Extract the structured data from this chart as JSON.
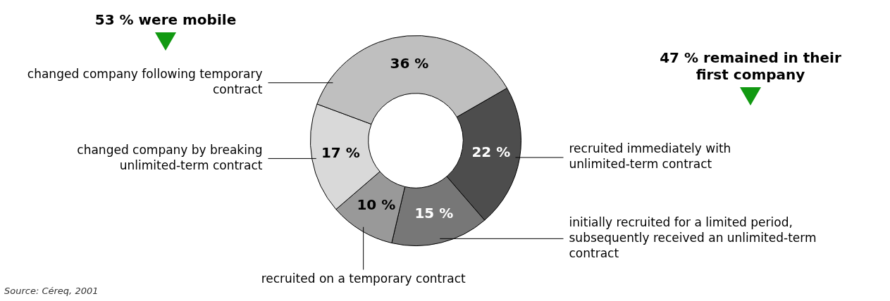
{
  "chart_data": {
    "type": "donut",
    "categories": [
      "recruited immediately with unlimited-term contract",
      "initially recruited for a limited period, subsequently received an unlimited-term contract",
      "recruited on a temporary contract",
      "changed company by breaking unlimited-term contract",
      "changed company following temporary contract"
    ],
    "values": [
      22,
      15,
      10,
      17,
      36
    ],
    "colors": [
      "#4d4d4d",
      "#777777",
      "#999999",
      "#d9d9d9",
      "#bfbfbf"
    ],
    "value_labels": [
      "22 %",
      "15 %",
      "10 %",
      "17 %",
      "36 %"
    ],
    "legend": false,
    "annotations": [
      "53 % were mobile",
      "47 % remained in their first company",
      "Source: Céreq, 2001"
    ]
  }
}
